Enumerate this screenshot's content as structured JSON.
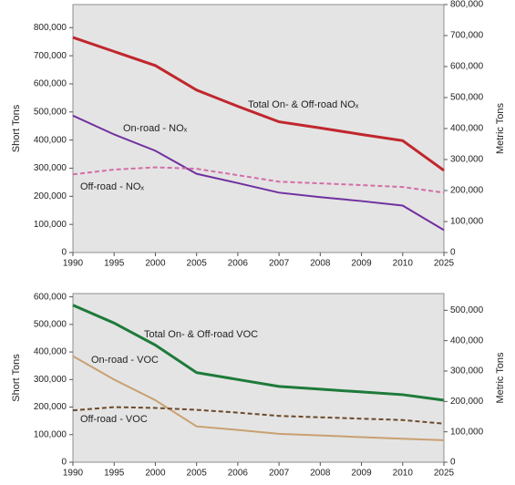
{
  "chart_data": [
    {
      "type": "line",
      "categories": [
        "1990",
        "1995",
        "2000",
        "2005",
        "2006",
        "2007",
        "2008",
        "2009",
        "2010",
        "2025"
      ],
      "series": [
        {
          "name": "Total On- & Off-road NOₓ",
          "color": "#c0272d",
          "line_style": "solid",
          "values": [
            765000,
            715000,
            665000,
            578000,
            520000,
            465000,
            443000,
            420000,
            398000,
            292000
          ]
        },
        {
          "name": "On-road - NOₓ",
          "color": "#7030a0",
          "line_style": "solid",
          "values": [
            487000,
            420000,
            362000,
            280000,
            247000,
            213000,
            197000,
            183000,
            167000,
            80000
          ]
        },
        {
          "name": "Off-road - NOₓ",
          "color": "#d36ea6",
          "line_style": "dashed",
          "values": [
            278000,
            295000,
            303000,
            298000,
            275000,
            252000,
            246000,
            240000,
            233000,
            213000
          ]
        }
      ],
      "ylabel": "Short Tons",
      "y2label": "Metric Tons",
      "ylim": [
        0,
        882000
      ],
      "yticks": [
        0,
        {
          "value": 100000,
          "label": "100,000"
        },
        {
          "value": 200000,
          "label": "200,000"
        },
        {
          "value": 300000,
          "label": "300,000"
        },
        {
          "value": 400000,
          "label": "400,000"
        },
        {
          "value": 500000,
          "label": "500,000"
        },
        {
          "value": 600000,
          "label": "600,000"
        },
        {
          "value": 700000,
          "label": "700,000"
        },
        {
          "value": 800000,
          "label": "800,000"
        }
      ],
      "y2lim": [
        0,
        800000
      ],
      "y2ticks": [
        0,
        {
          "value": 100000,
          "label": "100,000"
        },
        {
          "value": 200000,
          "label": "200,000"
        },
        {
          "value": 300000,
          "label": "300,000"
        },
        {
          "value": 400000,
          "label": "400,000"
        },
        {
          "value": 500000,
          "label": "500,000"
        },
        {
          "value": 600000,
          "label": "600,000"
        },
        {
          "value": 700000,
          "label": "700,000"
        },
        {
          "value": 800000,
          "label": "800,000"
        }
      ]
    },
    {
      "type": "line",
      "categories": [
        "1990",
        "1995",
        "2000",
        "2005",
        "2006",
        "2007",
        "2008",
        "2009",
        "2010",
        "2025"
      ],
      "series": [
        {
          "name": "Total On- & Off-road VOC",
          "color": "#1e7a3a",
          "line_style": "solid",
          "values": [
            570000,
            505000,
            425000,
            325000,
            300000,
            275000,
            265000,
            255000,
            245000,
            225000
          ]
        },
        {
          "name": "On-road - VOC",
          "color": "#c9a072",
          "line_style": "solid",
          "values": [
            385000,
            300000,
            225000,
            130000,
            117000,
            103000,
            97000,
            91000,
            85000,
            80000
          ]
        },
        {
          "name": "Off-road - VOC",
          "color": "#6b4a2a",
          "line_style": "dashed",
          "values": [
            188000,
            200000,
            197000,
            190000,
            180000,
            168000,
            163000,
            158000,
            153000,
            140000
          ]
        }
      ],
      "ylabel": "Short Tons",
      "y2label": "Metric Tons",
      "ylim": [
        0,
        612000
      ],
      "yticks": [
        0,
        {
          "value": 100000,
          "label": "100,000"
        },
        {
          "value": 200000,
          "label": "200,000"
        },
        {
          "value": 300000,
          "label": "300,000"
        },
        {
          "value": 400000,
          "label": "400,000"
        },
        {
          "value": 500000,
          "label": "500,000"
        },
        {
          "value": 600000,
          "label": "600,000"
        }
      ],
      "y2lim": [
        0,
        555000
      ],
      "y2ticks": [
        0,
        {
          "value": 100000,
          "label": "100,000"
        },
        {
          "value": 200000,
          "label": "200,000"
        },
        {
          "value": 300000,
          "label": "300,000"
        },
        {
          "value": 400000,
          "label": "400,000"
        },
        {
          "value": 500000,
          "label": "500,000"
        }
      ]
    }
  ]
}
